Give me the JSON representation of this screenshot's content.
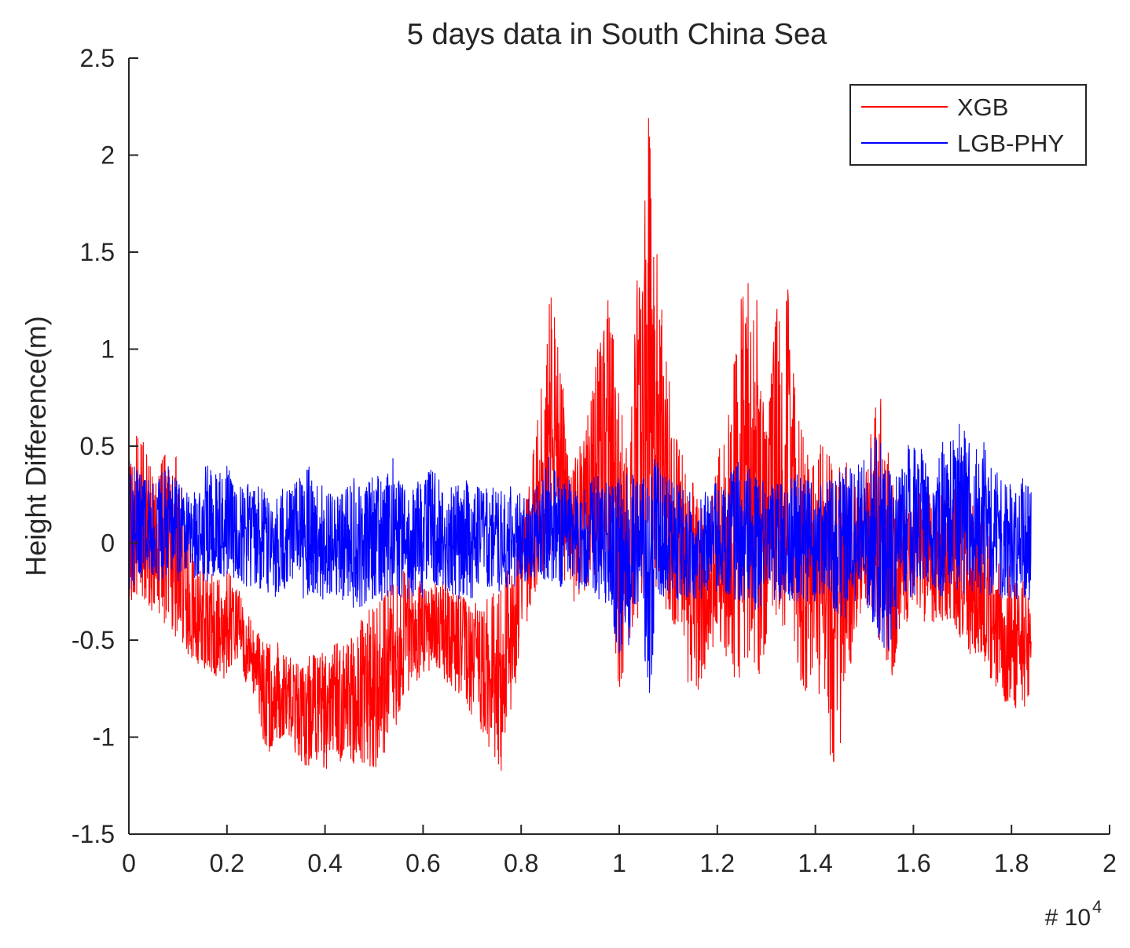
{
  "chart_data": {
    "type": "line",
    "title": "5 days data in South China Sea",
    "xlabel": "",
    "ylabel": "Height Difference(m)",
    "x_exponent_label": "# 10",
    "x_exponent_power": "4",
    "xlim": [
      0,
      20000
    ],
    "ylim": [
      -1.5,
      2.5
    ],
    "x_ticks": [
      0,
      2000,
      4000,
      6000,
      8000,
      10000,
      12000,
      14000,
      16000,
      18000,
      20000
    ],
    "x_tick_labels": [
      "0",
      "0.2",
      "0.4",
      "0.6",
      "0.8",
      "1",
      "1.2",
      "1.4",
      "1.6",
      "1.8",
      "2"
    ],
    "y_ticks": [
      -1.5,
      -1,
      -0.5,
      0,
      0.5,
      1,
      1.5,
      2,
      2.5
    ],
    "y_tick_labels": [
      "-1.5",
      "-1",
      "-0.5",
      "0",
      "0.5",
      "1",
      "1.5",
      "2",
      "2.5"
    ],
    "x_data_max": 18400,
    "grid": false,
    "legend_position": "top-right",
    "series": [
      {
        "name": "XGB",
        "color": "#ff0000",
        "envelope_x": [
          0,
          200,
          400,
          600,
          800,
          1000,
          1200,
          1400,
          1600,
          1800,
          2000,
          2200,
          2400,
          2600,
          2800,
          3000,
          3200,
          3400,
          3600,
          3800,
          4000,
          4200,
          4400,
          4600,
          4800,
          5000,
          5200,
          5400,
          5600,
          5800,
          6000,
          6200,
          6400,
          6600,
          6800,
          7000,
          7200,
          7400,
          7600,
          7800,
          8000,
          8200,
          8400,
          8600,
          8800,
          9000,
          9200,
          9400,
          9600,
          9800,
          10000,
          10200,
          10400,
          10600,
          10800,
          11000,
          11200,
          11400,
          11600,
          11800,
          12000,
          12200,
          12400,
          12600,
          12800,
          13000,
          13200,
          13400,
          13600,
          13800,
          14000,
          14200,
          14400,
          14600,
          14800,
          15000,
          15200,
          15400,
          15600,
          15800,
          16000,
          16200,
          16400,
          16600,
          16800,
          17000,
          17200,
          17400,
          17600,
          17800,
          18000,
          18200,
          18400
        ],
        "envelope_upper": [
          0.45,
          0.6,
          0.45,
          0.35,
          0.55,
          0.45,
          0.1,
          -0.05,
          -0.1,
          -0.15,
          -0.1,
          -0.2,
          -0.35,
          -0.45,
          -0.5,
          -0.5,
          -0.55,
          -0.6,
          -0.6,
          -0.55,
          -0.55,
          -0.5,
          -0.5,
          -0.45,
          -0.35,
          -0.3,
          -0.25,
          -0.15,
          -0.1,
          -0.15,
          -0.2,
          -0.2,
          -0.15,
          -0.2,
          -0.25,
          -0.3,
          -0.3,
          -0.25,
          -0.2,
          -0.1,
          0.05,
          0.4,
          0.8,
          1.3,
          1.0,
          0.4,
          0.5,
          0.7,
          1.1,
          1.35,
          0.9,
          0.4,
          1.6,
          2.2,
          1.4,
          0.9,
          0.6,
          0.35,
          0.3,
          0.2,
          0.5,
          0.8,
          1.0,
          1.6,
          1.3,
          0.6,
          1.2,
          1.45,
          0.75,
          0.5,
          0.5,
          0.55,
          0.4,
          0.45,
          0.35,
          0.3,
          0.75,
          0.8,
          0.3,
          0.2,
          0.2,
          0.35,
          0.2,
          0.3,
          0.3,
          0.5,
          0.25,
          0.2,
          0.0,
          -0.1,
          -0.1,
          -0.15,
          -0.2
        ],
        "envelope_lower": [
          -0.3,
          -0.3,
          -0.35,
          -0.4,
          -0.45,
          -0.5,
          -0.6,
          -0.65,
          -0.65,
          -0.7,
          -0.7,
          -0.6,
          -0.75,
          -0.85,
          -1.1,
          -1.05,
          -1.0,
          -1.1,
          -1.15,
          -1.15,
          -1.2,
          -1.1,
          -1.15,
          -1.15,
          -1.15,
          -1.2,
          -1.1,
          -1.0,
          -0.85,
          -0.75,
          -0.7,
          -0.65,
          -0.7,
          -0.75,
          -0.8,
          -0.9,
          -1.0,
          -1.1,
          -1.2,
          -0.9,
          -0.5,
          -0.35,
          -0.2,
          -0.1,
          -0.15,
          -0.35,
          -0.3,
          -0.25,
          -0.15,
          -0.2,
          -0.8,
          -0.5,
          -0.4,
          -0.3,
          -0.25,
          -0.4,
          -0.45,
          -0.75,
          -0.8,
          -0.6,
          -0.5,
          -0.6,
          -0.75,
          -0.6,
          -0.8,
          -0.5,
          -0.4,
          -0.45,
          -0.65,
          -0.8,
          -0.7,
          -1.0,
          -1.2,
          -0.9,
          -0.5,
          -0.3,
          -0.4,
          -0.6,
          -0.75,
          -0.5,
          -0.3,
          -0.4,
          -0.45,
          -0.4,
          -0.45,
          -0.55,
          -0.6,
          -0.6,
          -0.75,
          -0.85,
          -0.85,
          -0.9,
          -0.85
        ]
      },
      {
        "name": "LGB-PHY",
        "color": "#0000ff",
        "envelope_x": [
          0,
          200,
          400,
          600,
          800,
          1000,
          1200,
          1400,
          1600,
          1800,
          2000,
          2200,
          2400,
          2600,
          2800,
          3000,
          3200,
          3400,
          3600,
          3800,
          4000,
          4200,
          4400,
          4600,
          4800,
          5000,
          5200,
          5400,
          5600,
          5800,
          6000,
          6200,
          6400,
          6600,
          6800,
          7000,
          7200,
          7400,
          7600,
          7800,
          8000,
          8200,
          8400,
          8600,
          8800,
          9000,
          9200,
          9400,
          9600,
          9800,
          10000,
          10200,
          10400,
          10600,
          10800,
          11000,
          11200,
          11400,
          11600,
          11800,
          12000,
          12200,
          12400,
          12600,
          12800,
          13000,
          13200,
          13400,
          13600,
          13800,
          14000,
          14200,
          14400,
          14600,
          14800,
          15000,
          15200,
          15400,
          15600,
          15800,
          16000,
          16200,
          16400,
          16600,
          16800,
          17000,
          17200,
          17400,
          17600,
          17800,
          18000,
          18200,
          18400
        ],
        "envelope_upper": [
          0.45,
          0.4,
          0.35,
          0.35,
          0.4,
          0.35,
          0.3,
          0.3,
          0.45,
          0.35,
          0.4,
          0.3,
          0.35,
          0.3,
          0.3,
          0.25,
          0.3,
          0.35,
          0.45,
          0.3,
          0.3,
          0.25,
          0.3,
          0.35,
          0.3,
          0.4,
          0.3,
          0.45,
          0.3,
          0.3,
          0.35,
          0.4,
          0.3,
          0.3,
          0.35,
          0.3,
          0.3,
          0.3,
          0.3,
          0.3,
          0.25,
          0.3,
          0.3,
          0.5,
          0.3,
          0.35,
          0.3,
          0.35,
          0.35,
          0.3,
          0.35,
          0.4,
          0.3,
          0.45,
          0.45,
          0.35,
          0.3,
          0.3,
          0.3,
          0.3,
          0.35,
          0.35,
          0.45,
          0.4,
          0.35,
          0.35,
          0.3,
          0.35,
          0.35,
          0.4,
          0.3,
          0.35,
          0.35,
          0.4,
          0.4,
          0.45,
          0.55,
          0.5,
          0.35,
          0.5,
          0.55,
          0.5,
          0.3,
          0.55,
          0.55,
          0.65,
          0.5,
          0.55,
          0.4,
          0.35,
          0.3,
          0.35,
          0.3
        ],
        "envelope_lower": [
          -0.25,
          -0.2,
          -0.15,
          -0.2,
          -0.2,
          -0.2,
          -0.15,
          -0.2,
          -0.2,
          -0.2,
          -0.2,
          -0.2,
          -0.25,
          -0.25,
          -0.25,
          -0.3,
          -0.25,
          -0.25,
          -0.3,
          -0.3,
          -0.3,
          -0.3,
          -0.3,
          -0.35,
          -0.35,
          -0.3,
          -0.3,
          -0.3,
          -0.3,
          -0.3,
          -0.3,
          -0.25,
          -0.25,
          -0.3,
          -0.3,
          -0.3,
          -0.25,
          -0.25,
          -0.25,
          -0.25,
          -0.2,
          -0.2,
          -0.2,
          -0.2,
          -0.25,
          -0.2,
          -0.25,
          -0.25,
          -0.3,
          -0.35,
          -0.6,
          -0.55,
          -0.3,
          -0.85,
          -0.3,
          -0.3,
          -0.3,
          -0.3,
          -0.3,
          -0.3,
          -0.25,
          -0.3,
          -0.3,
          -0.35,
          -0.35,
          -0.3,
          -0.3,
          -0.3,
          -0.3,
          -0.35,
          -0.3,
          -0.3,
          -0.35,
          -0.4,
          -0.3,
          -0.3,
          -0.45,
          -0.55,
          -0.55,
          -0.3,
          -0.3,
          -0.2,
          -0.25,
          -0.3,
          -0.25,
          -0.3,
          -0.25,
          -0.3,
          -0.3,
          -0.3,
          -0.3,
          -0.3,
          -0.3
        ]
      }
    ]
  }
}
